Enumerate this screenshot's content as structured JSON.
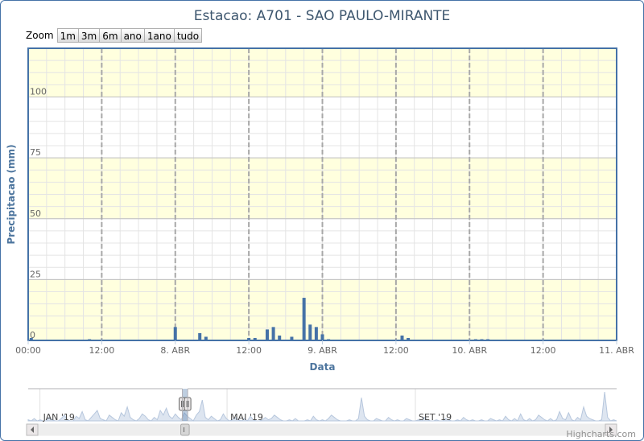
{
  "chart_data": {
    "type": "bar",
    "title": "Estacao: A701 - SAO PAULO-MIRANTE",
    "xlabel": "Data",
    "ylabel": "Precipitacao (mm)",
    "ylim": [
      0,
      120
    ],
    "yticks": [
      0,
      25,
      50,
      75,
      100
    ],
    "xlim_hours": [
      0,
      72
    ],
    "xticks": [
      {
        "hour": 0,
        "label": "00:00"
      },
      {
        "hour": 12,
        "label": "12:00"
      },
      {
        "hour": 24,
        "label": "8. ABR"
      },
      {
        "hour": 36,
        "label": "12:00"
      },
      {
        "hour": 48,
        "label": "9. ABR"
      },
      {
        "hour": 60,
        "label": "12:00"
      },
      {
        "hour": 72,
        "label": "10. ABR"
      },
      {
        "hour": 84,
        "label": "12:00"
      },
      {
        "hour": 96,
        "label": "11. ABR"
      }
    ],
    "x_start": "7. ABR 00:00",
    "bar_color": "#4572a7",
    "grid": true,
    "band_color": "#ffffde",
    "series": [
      {
        "x_hours": [
          0.5,
          10,
          24,
          28,
          29,
          36,
          37,
          39,
          40,
          41,
          43,
          45,
          46,
          47,
          48,
          49,
          61,
          62,
          73,
          74,
          75
        ],
        "values": [
          1,
          0.5,
          5.5,
          3,
          1.5,
          1,
          1,
          4.5,
          5.5,
          2,
          1.5,
          17.5,
          6.5,
          5.5,
          2.5,
          0.5,
          2,
          1,
          0.5,
          0.5,
          0.5
        ]
      }
    ]
  },
  "zoom": {
    "label": "Zoom",
    "buttons": [
      "1m",
      "3m",
      "6m",
      "ano",
      "1ano",
      "tudo"
    ]
  },
  "navigator": {
    "labels": [
      "JAN '19",
      "MAI '19",
      "SET '19"
    ],
    "series": [
      1,
      0,
      2,
      0,
      1,
      0,
      0,
      3,
      1,
      0,
      0,
      2,
      5,
      1,
      0,
      0,
      4,
      2,
      8,
      1,
      0,
      3,
      6,
      9,
      2,
      1,
      0,
      5,
      3,
      1,
      0,
      7,
      4,
      12,
      3,
      1,
      0,
      2,
      6,
      4,
      1,
      0,
      3,
      1,
      9,
      5,
      11,
      4,
      2,
      6,
      3,
      1,
      7,
      4,
      2,
      0,
      5,
      8,
      18,
      3,
      1,
      4,
      2,
      0,
      1,
      6,
      2,
      0,
      1,
      3,
      1,
      0,
      2,
      0,
      4,
      1,
      0,
      0,
      1,
      3,
      1,
      2,
      5,
      3,
      1,
      0,
      0,
      1,
      0,
      2,
      0,
      0,
      0,
      1,
      0,
      4,
      1,
      0,
      1,
      0,
      2,
      5,
      3,
      1,
      0,
      0,
      0,
      1,
      0,
      0,
      2,
      20,
      4,
      1,
      0,
      0,
      2,
      1,
      0,
      0,
      3,
      1,
      0,
      1,
      0,
      0,
      2,
      1,
      0,
      0,
      1,
      0,
      3,
      1,
      0,
      0,
      1,
      0,
      0,
      2,
      1,
      0,
      0,
      1,
      0,
      3,
      1,
      0,
      1,
      0,
      0,
      1,
      0,
      0,
      2,
      1,
      0,
      1,
      0,
      4,
      1,
      0,
      2,
      0,
      6,
      1,
      0,
      2,
      0,
      1,
      5,
      3,
      1,
      0,
      2,
      0,
      1,
      8,
      2,
      1,
      7,
      1,
      0,
      3,
      1,
      12,
      4,
      2,
      1,
      0,
      0,
      1,
      25,
      3,
      0,
      1,
      0
    ],
    "handle_left_frac": 0.262,
    "handle_right_frac": 0.271
  },
  "credits": "Highcharts.com"
}
